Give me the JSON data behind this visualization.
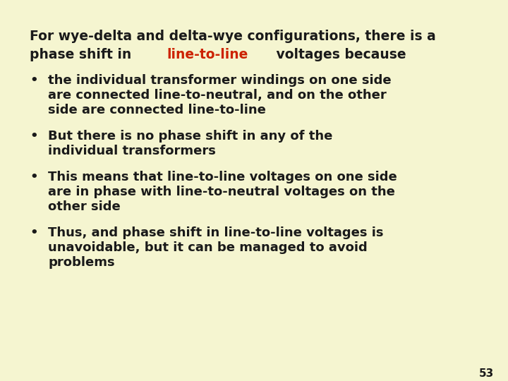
{
  "background_color": "#f5f5d0",
  "title_line1": "For wye-delta and delta-wye configurations, there is a",
  "title_line2_prefix": "phase shift in ",
  "title_line2_highlight": "line-to-line",
  "title_line2_suffix": " voltages because",
  "highlight_color": "#cc2200",
  "text_color": "#1a1a1a",
  "bullet_points": [
    [
      "the individual transformer windings on one side",
      "are connected line-to-neutral, and on the other",
      "side are connected line-to-line"
    ],
    [
      "But there is no phase shift in any of the",
      "individual transformers"
    ],
    [
      "This means that line-to-line voltages on one side",
      "are in phase with line-to-neutral voltages on the",
      "other side"
    ],
    [
      "Thus, and phase shift in line-to-line voltages is",
      "unavoidable, but it can be managed to avoid",
      "problems"
    ]
  ],
  "page_number": "53",
  "font_size_title": 13.5,
  "font_size_body": 13.0,
  "font_size_page": 11,
  "font_family": "DejaVu Sans"
}
